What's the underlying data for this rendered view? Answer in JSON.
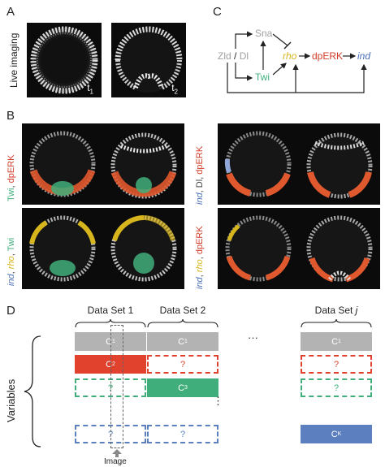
{
  "panels": {
    "A": {
      "letter": "A",
      "row_label": "Live imaging",
      "time_labels": [
        "t",
        "t"
      ],
      "time_subs": [
        "1",
        "2"
      ]
    },
    "B": {
      "letter": "B",
      "left_labels": [
        [
          {
            "t": "Twi",
            "c": "#3fae7a"
          },
          {
            "t": ", ",
            "c": "#444444"
          },
          {
            "t": "dpERK",
            "c": "#d23c2a"
          }
        ],
        [
          {
            "t": "ind",
            "c": "#4c70b8",
            "i": true
          },
          {
            "t": ", ",
            "c": "#444444"
          },
          {
            "t": "rho",
            "c": "#d7b51c",
            "i": true
          },
          {
            "t": ", ",
            "c": "#444444"
          },
          {
            "t": "Twi",
            "c": "#3fae7a"
          }
        ]
      ],
      "right_labels": [
        [
          {
            "t": "ind",
            "c": "#4c70b8",
            "i": true
          },
          {
            "t": ", Dl, ",
            "c": "#444444"
          },
          {
            "t": "dpERK",
            "c": "#d23c2a"
          }
        ],
        [
          {
            "t": "ind",
            "c": "#4c70b8",
            "i": true
          },
          {
            "t": ", ",
            "c": "#444444"
          },
          {
            "t": "rho",
            "c": "#d7b51c",
            "i": true
          },
          {
            "t": ", ",
            "c": "#444444"
          },
          {
            "t": "dpERK",
            "c": "#d23c2a"
          }
        ]
      ]
    },
    "C": {
      "letter": "C",
      "nodes": {
        "zld": "Zld",
        "slash": " / ",
        "dl": "Dl",
        "sna": "Sna",
        "twi": "Twi",
        "rho": "rho",
        "dperk": "dpERK",
        "ind": "ind"
      },
      "colors": {
        "gray": "#a0a0a0",
        "green": "#3fae7a",
        "yellow": "#d7b51c",
        "red": "#d23c2a",
        "blue": "#4c70b8",
        "line": "#222222"
      }
    },
    "D": {
      "letter": "D",
      "variables_label": "Variables",
      "image_label": "Image",
      "ellipsis_h": "···",
      "ellipsis_v": "⋮",
      "data_sets": [
        {
          "title": "Data Set 1",
          "title_suffix": "",
          "rows": [
            {
              "kind": "solid",
              "label": "C",
              "sub": "1",
              "color": "gray"
            },
            {
              "kind": "solid",
              "label": "C",
              "sub": "2",
              "color": "red"
            },
            {
              "kind": "dash",
              "label": "?",
              "sub": "",
              "color": "green"
            },
            {
              "kind": "dash",
              "label": "?",
              "sub": "",
              "color": "blue"
            }
          ]
        },
        {
          "title": "Data Set 2",
          "title_suffix": "",
          "rows": [
            {
              "kind": "solid",
              "label": "C",
              "sub": "1",
              "color": "gray"
            },
            {
              "kind": "dash",
              "label": "?",
              "sub": "",
              "color": "red"
            },
            {
              "kind": "solid",
              "label": "C",
              "sub": "3",
              "color": "green"
            },
            {
              "kind": "dash",
              "label": "?",
              "sub": "",
              "color": "blue"
            }
          ]
        },
        {
          "title": "Data Set ",
          "title_suffix": "j",
          "rows": [
            {
              "kind": "solid",
              "label": "C",
              "sub": "1",
              "color": "gray"
            },
            {
              "kind": "dash",
              "label": "?",
              "sub": "",
              "color": "red"
            },
            {
              "kind": "dash",
              "label": "?",
              "sub": "",
              "color": "green"
            },
            {
              "kind": "solid",
              "label": "C",
              "sub": "K",
              "color": "blue"
            }
          ]
        }
      ],
      "box_colors": {
        "gray": "#b3b3b3",
        "red": "#e0422e",
        "green": "#3fae7a",
        "blue": "#5b7fbf"
      }
    }
  }
}
